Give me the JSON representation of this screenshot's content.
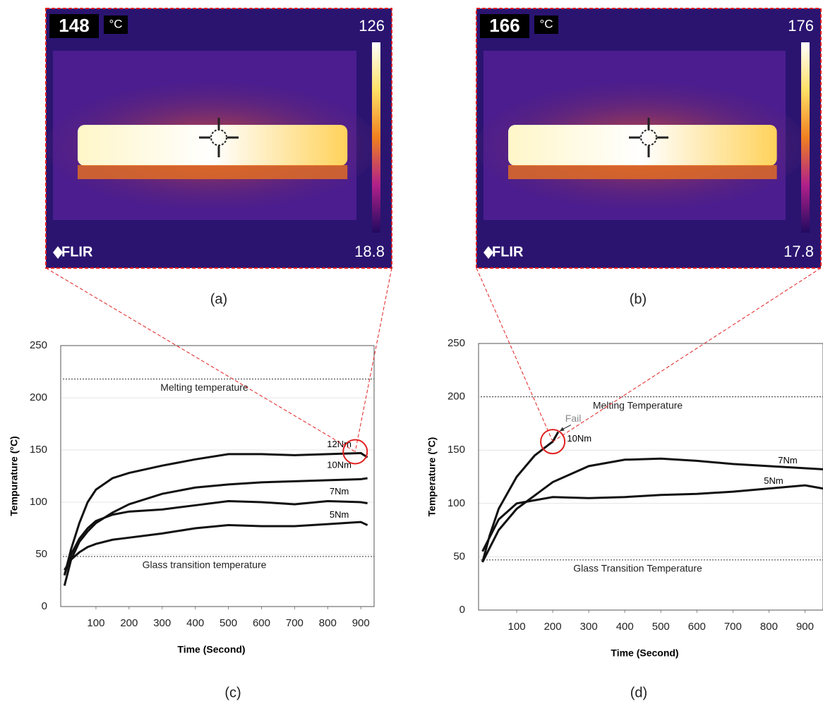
{
  "images": [
    {
      "reading": 148,
      "unit": "°C",
      "scale_max": 126,
      "scale_min": 18.8,
      "brand": "FLIR",
      "caption": "(a)"
    },
    {
      "reading": 166,
      "unit": "°C",
      "scale_max": 176,
      "scale_min": 17.8,
      "brand": "FLIR",
      "caption": "(b)"
    }
  ],
  "chart_data": [
    {
      "type": "line",
      "caption": "(c)",
      "x_label": "Time (Second)",
      "y_label": "Tempurature (°C)",
      "xlim": [
        0,
        940
      ],
      "ylim": [
        0,
        250
      ],
      "xticks": [
        100,
        200,
        300,
        400,
        500,
        600,
        700,
        800,
        900
      ],
      "yticks": [
        0,
        50,
        100,
        150,
        200,
        250
      ],
      "grid": true,
      "reference_lines": [
        {
          "label": "Melting temperature",
          "value": 218
        },
        {
          "label": "Glass transition temperature",
          "value": 48
        }
      ],
      "series": [
        {
          "name": "12Nm",
          "color": "#111111",
          "x": [
            5,
            25,
            50,
            75,
            100,
            150,
            200,
            300,
            400,
            500,
            600,
            700,
            800,
            900,
            920
          ],
          "values": [
            30,
            55,
            80,
            100,
            112,
            123,
            128,
            135,
            141,
            146,
            146,
            145,
            146,
            147,
            143
          ]
        },
        {
          "name": "10Nm",
          "color": "#111111",
          "x": [
            5,
            25,
            50,
            75,
            100,
            150,
            200,
            300,
            400,
            500,
            600,
            700,
            800,
            900,
            920
          ],
          "values": [
            20,
            45,
            62,
            72,
            80,
            90,
            98,
            108,
            114,
            117,
            119,
            120,
            121,
            122,
            123
          ]
        },
        {
          "name": "7Nm",
          "color": "#111111",
          "x": [
            5,
            25,
            50,
            75,
            100,
            150,
            200,
            300,
            400,
            500,
            600,
            700,
            800,
            900,
            920
          ],
          "values": [
            30,
            50,
            65,
            75,
            82,
            88,
            91,
            93,
            97,
            101,
            100,
            98,
            101,
            100,
            99
          ]
        },
        {
          "name": "5Nm",
          "color": "#111111",
          "x": [
            5,
            25,
            50,
            75,
            100,
            150,
            200,
            300,
            400,
            500,
            600,
            700,
            800,
            900,
            920
          ],
          "values": [
            35,
            45,
            52,
            57,
            60,
            64,
            66,
            70,
            75,
            78,
            77,
            77,
            79,
            81,
            78
          ]
        }
      ]
    },
    {
      "type": "line",
      "caption": "(d)",
      "x_label": "Time (Second)",
      "y_label": "Temperature (°C)",
      "fail_label": "Fail",
      "xlim": [
        0,
        950
      ],
      "ylim": [
        0,
        250
      ],
      "xticks": [
        100,
        200,
        300,
        400,
        500,
        600,
        700,
        800,
        900
      ],
      "yticks": [
        0,
        50,
        100,
        150,
        200,
        250
      ],
      "grid": true,
      "reference_lines": [
        {
          "label": "Melting Temperature",
          "value": 200
        },
        {
          "label": "Glass Transition Temperature",
          "value": 47
        }
      ],
      "series": [
        {
          "name": "10Nm",
          "color": "#111111",
          "x": [
            5,
            25,
            50,
            100,
            150,
            200,
            215
          ],
          "values": [
            45,
            70,
            95,
            125,
            145,
            158,
            167
          ]
        },
        {
          "name": "7Nm",
          "color": "#111111",
          "x": [
            5,
            50,
            100,
            200,
            300,
            400,
            500,
            600,
            700,
            800,
            900,
            950
          ],
          "values": [
            45,
            75,
            95,
            120,
            135,
            141,
            142,
            140,
            137,
            135,
            133,
            132
          ]
        },
        {
          "name": "5Nm",
          "color": "#111111",
          "x": [
            5,
            50,
            100,
            200,
            300,
            400,
            500,
            600,
            700,
            800,
            900,
            950
          ],
          "values": [
            55,
            85,
            100,
            106,
            105,
            106,
            108,
            109,
            111,
            114,
            117,
            114
          ]
        }
      ]
    }
  ]
}
